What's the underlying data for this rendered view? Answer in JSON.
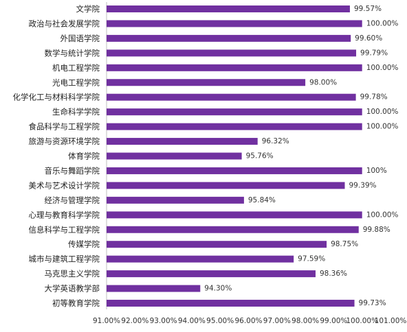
{
  "chart_data": {
    "type": "bar",
    "orientation": "horizontal",
    "bar_color": "#7030A0",
    "grid": false,
    "legend": "none",
    "xlim": [
      91,
      101
    ],
    "xticks": [
      91,
      92,
      93,
      94,
      95,
      96,
      97,
      98,
      99,
      100,
      101
    ],
    "xtick_labels": [
      "91.00%",
      "92.00%",
      "93.00%",
      "94.00%",
      "95.00%",
      "96.00%",
      "97.00%",
      "98.00%",
      "99.00%",
      "100.00%",
      "101.00%"
    ],
    "categories": [
      "文学院",
      "政治与社会发展学院",
      "外国语学院",
      "数学与统计学院",
      "机电工程学院",
      "光电工程学院",
      "化学化工与材料科学学院",
      "生命科学学院",
      "食品科学与工程学院",
      "旅游与资源环境学院",
      "体育学院",
      "音乐与舞蹈学院",
      "美术与艺术设计学院",
      "经济与管理学院",
      "心理与教育科学学院",
      "信息科学与工程学院",
      "传媒学院",
      "城市与建筑工程学院",
      "马克思主义学院",
      "大学英语教学部",
      "初等教育学院"
    ],
    "values": [
      99.57,
      100,
      99.6,
      99.79,
      100,
      98,
      99.78,
      100,
      100,
      96.32,
      95.76,
      100,
      99.39,
      95.84,
      100,
      99.88,
      98.75,
      97.59,
      98.36,
      94.3,
      99.73
    ],
    "value_labels": [
      "99.57%",
      "100.00%",
      "99.60%",
      "99.79%",
      "100.00%",
      "98.00%",
      "99.78%",
      "100.00%",
      "100.00%",
      "96.32%",
      "95.76%",
      "100%",
      "99.39%",
      "95.84%",
      "100.00%",
      "99.88%",
      "98.75%",
      "97.59%",
      "98.36%",
      "94.30%",
      "99.73%"
    ]
  }
}
